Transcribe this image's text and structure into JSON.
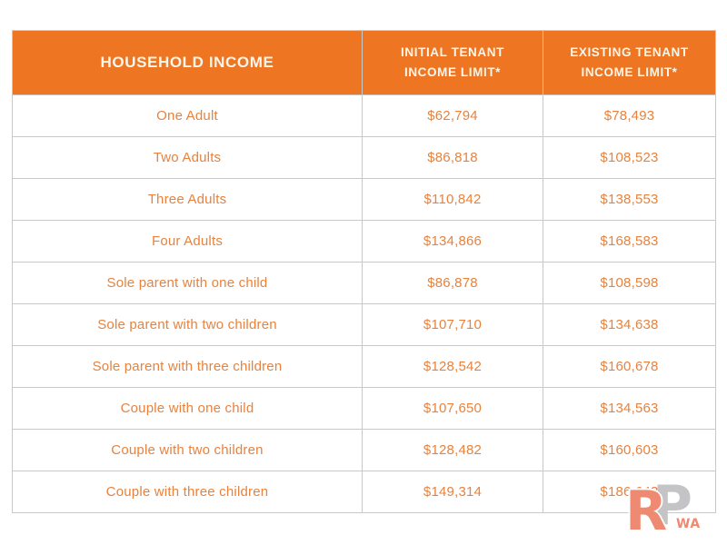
{
  "colors": {
    "header_background": "#ee7623",
    "header_text": "#fbf5ea",
    "cell_text": "#e8823d",
    "border": "#c8c8c8",
    "watermark_coral": "#ef8a72",
    "watermark_gray": "#c4c4c6"
  },
  "table": {
    "headers": {
      "household": "HOUSEHOLD INCOME",
      "initial": "INITIAL TENANT INCOME LIMIT*",
      "existing": "EXISTING TENANT INCOME LIMIT*"
    },
    "rows": [
      {
        "household": "One Adult",
        "initial": "$62,794",
        "existing": "$78,493"
      },
      {
        "household": "Two Adults",
        "initial": "$86,818",
        "existing": "$108,523"
      },
      {
        "household": "Three Adults",
        "initial": "$110,842",
        "existing": "$138,553"
      },
      {
        "household": "Four Adults",
        "initial": "$134,866",
        "existing": "$168,583"
      },
      {
        "household": "Sole parent with one child",
        "initial": "$86,878",
        "existing": "$108,598"
      },
      {
        "household": "Sole parent with two children",
        "initial": "$107,710",
        "existing": "$134,638"
      },
      {
        "household": "Sole parent with three children",
        "initial": "$128,542",
        "existing": "$160,678"
      },
      {
        "household": "Couple with one child",
        "initial": "$107,650",
        "existing": "$134,563"
      },
      {
        "household": "Couple with two children",
        "initial": "$128,482",
        "existing": "$160,603"
      },
      {
        "household": "Couple with three children",
        "initial": "$149,314",
        "existing": "$186,643"
      }
    ]
  },
  "watermark": {
    "letter_r": "R",
    "letter_p": "P",
    "sub_text": "WA"
  },
  "chart_data": {
    "type": "table",
    "title": "HOUSEHOLD INCOME",
    "columns": [
      "HOUSEHOLD INCOME",
      "INITIAL TENANT INCOME LIMIT*",
      "EXISTING TENANT INCOME LIMIT*"
    ],
    "rows": [
      [
        "One Adult",
        "$62,794",
        "$78,493"
      ],
      [
        "Two Adults",
        "$86,818",
        "$108,523"
      ],
      [
        "Three Adults",
        "$110,842",
        "$138,553"
      ],
      [
        "Four Adults",
        "$134,866",
        "$168,583"
      ],
      [
        "Sole parent with one child",
        "$86,878",
        "$108,598"
      ],
      [
        "Sole parent with two children",
        "$107,710",
        "$134,638"
      ],
      [
        "Sole parent with three children",
        "$128,542",
        "$160,678"
      ],
      [
        "Couple with one child",
        "$107,650",
        "$134,563"
      ],
      [
        "Couple with two children",
        "$128,482",
        "$160,603"
      ],
      [
        "Couple with three children",
        "$149,314",
        "$186,643"
      ]
    ],
    "initial_tenant_income_limit_values": [
      62794,
      86818,
      110842,
      134866,
      86878,
      107710,
      128542,
      107650,
      128482,
      149314
    ],
    "existing_tenant_income_limit_values": [
      78493,
      108523,
      138553,
      168583,
      108598,
      134638,
      160678,
      134563,
      160603,
      186643
    ]
  }
}
